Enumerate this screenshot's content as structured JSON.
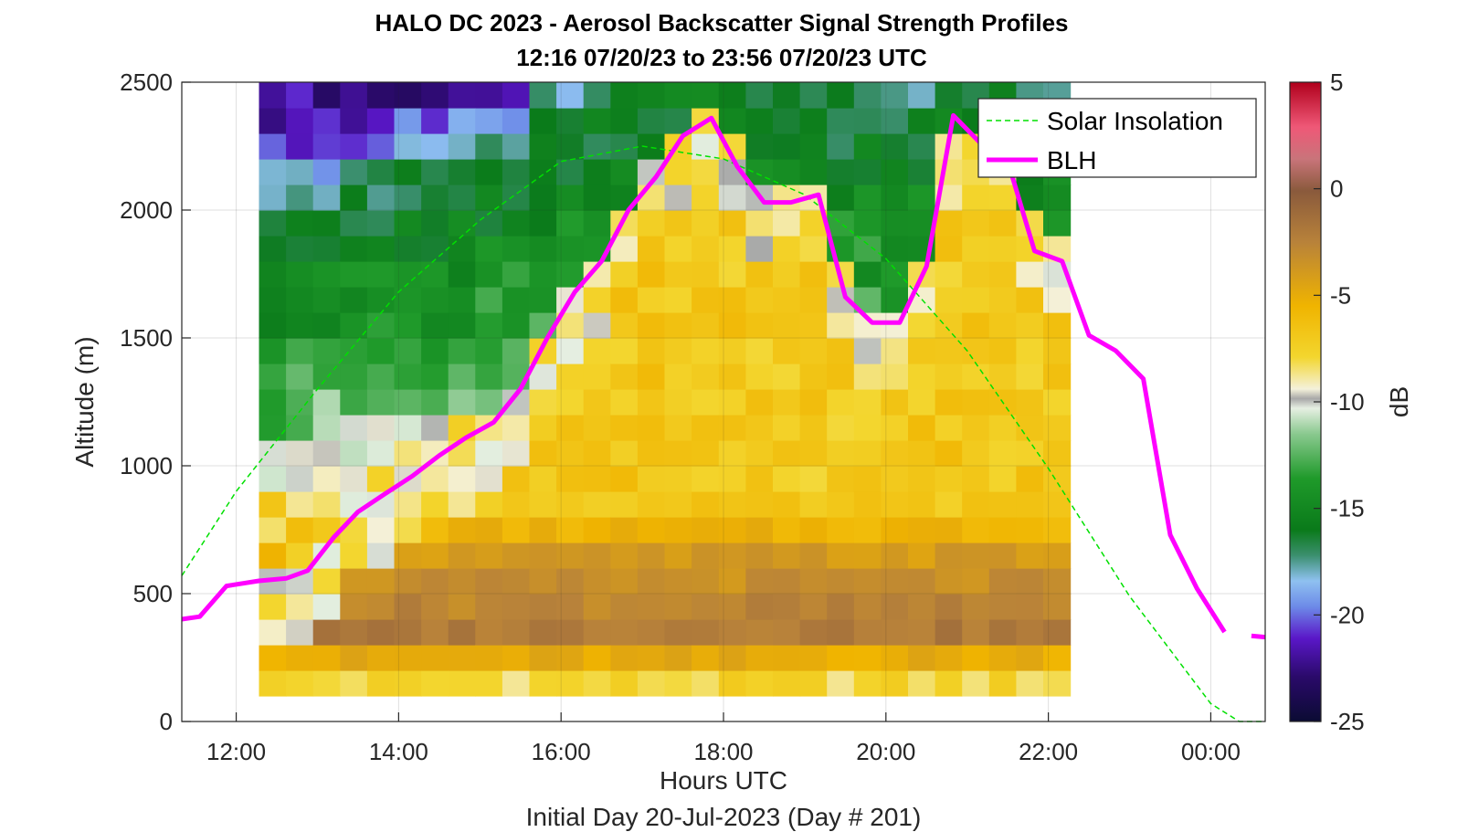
{
  "chart_data": {
    "type": "heatmap",
    "title": "HALO DC 2023 - Aerosol Backscatter Signal Strength Profiles",
    "subtitle": "12:16 07/20/23 to 23:56 07/20/23  UTC",
    "xlabel": "Hours UTC",
    "ylabel": "Altitude (m)",
    "footer": "Initial Day 20-Jul-2023 (Day # 201)",
    "x_units": "hours after 00:00 UTC 20-Jul-2023",
    "xlim": [
      11.33,
      24.67
    ],
    "ylim": [
      0,
      2500
    ],
    "x_ticks": [
      {
        "value": 12,
        "label": "12:00"
      },
      {
        "value": 14,
        "label": "14:00"
      },
      {
        "value": 16,
        "label": "16:00"
      },
      {
        "value": 18,
        "label": "18:00"
      },
      {
        "value": 20,
        "label": "20:00"
      },
      {
        "value": 22,
        "label": "22:00"
      },
      {
        "value": 24,
        "label": "00:00"
      }
    ],
    "y_ticks": [
      {
        "value": 0,
        "label": "0"
      },
      {
        "value": 500,
        "label": "500"
      },
      {
        "value": 1000,
        "label": "1000"
      },
      {
        "value": 1500,
        "label": "1500"
      },
      {
        "value": 2000,
        "label": "2000"
      },
      {
        "value": 2500,
        "label": "2500"
      }
    ],
    "grid": true,
    "colorbar": {
      "label": "dB",
      "range": [
        -25,
        5
      ],
      "ticks": [
        {
          "value": 5,
          "label": "5"
        },
        {
          "value": 0,
          "label": "0"
        },
        {
          "value": -5,
          "label": "-5"
        },
        {
          "value": -10,
          "label": "-10"
        },
        {
          "value": -15,
          "label": "-15"
        },
        {
          "value": -20,
          "label": "-20"
        },
        {
          "value": -25,
          "label": "-25"
        }
      ]
    },
    "heatmap": {
      "x_start": 12.28,
      "x_step": 0.333,
      "n_columns": 30,
      "y_levels": [
        150,
        250,
        350,
        450,
        550,
        650,
        750,
        850,
        950,
        1050,
        1150,
        1250,
        1350,
        1450,
        1550,
        1650,
        1750,
        1850,
        1950,
        2050,
        2150,
        2250,
        2350,
        2450
      ],
      "anchor_db": [
        {
          "altitude": 150,
          "db": -8
        },
        {
          "altitude": 350,
          "db": -2
        },
        {
          "altitude": 650,
          "db": -4
        },
        {
          "altitude": 850,
          "db": -7
        },
        {
          "altitude": 1000,
          "db": -8
        },
        {
          "altitude": 1100,
          "db": -10
        },
        {
          "altitude": 1300,
          "db": -12
        },
        {
          "altitude": 1500,
          "db": -13.5
        },
        {
          "altitude": 1800,
          "db": -15
        },
        {
          "altitude": 2200,
          "db": -17
        },
        {
          "altitude": 2450,
          "db": -22
        }
      ]
    },
    "series": [
      {
        "name": "Solar Insolation",
        "style": "dashed",
        "color": "#00e000",
        "x": [
          11.33,
          12.0,
          13.0,
          14.0,
          15.0,
          16.0,
          17.0,
          18.0,
          19.0,
          20.0,
          21.0,
          22.0,
          23.0,
          24.0,
          24.35,
          24.67
        ],
        "y": [
          570,
          900,
          1300,
          1680,
          1960,
          2190,
          2250,
          2200,
          2060,
          1810,
          1450,
          990,
          490,
          70,
          0,
          0
        ]
      },
      {
        "name": "BLH",
        "style": "solid",
        "color": "#ff00ff",
        "x": [
          11.33,
          11.55,
          11.88,
          12.28,
          12.62,
          12.88,
          13.2,
          13.5,
          13.83,
          14.17,
          14.5,
          14.83,
          15.17,
          15.5,
          15.83,
          16.17,
          16.5,
          16.83,
          17.17,
          17.5,
          17.85,
          18.17,
          18.5,
          18.83,
          19.17,
          19.5,
          19.83,
          20.17,
          20.5,
          20.83,
          21.17,
          21.5,
          21.83,
          22.17,
          22.5,
          22.83,
          23.17,
          23.5,
          23.83,
          24.17
        ],
        "y": [
          400,
          410,
          530,
          550,
          560,
          590,
          720,
          820,
          890,
          960,
          1040,
          1110,
          1170,
          1300,
          1500,
          1680,
          1800,
          2000,
          2130,
          2290,
          2360,
          2170,
          2030,
          2030,
          2060,
          1660,
          1560,
          1560,
          1780,
          2370,
          2260,
          2190,
          1840,
          1800,
          1510,
          1450,
          1340,
          730,
          520,
          350
        ],
        "extra_segment": {
          "x": [
            24.5,
            24.67
          ],
          "y": [
            335,
            330
          ]
        }
      }
    ],
    "legend": {
      "placement": "top-right",
      "entries": [
        {
          "label": "Solar Insolation",
          "style": "dashed",
          "color": "#00e000"
        },
        {
          "label": "BLH",
          "style": "solid",
          "color": "#ff00ff"
        }
      ]
    }
  }
}
